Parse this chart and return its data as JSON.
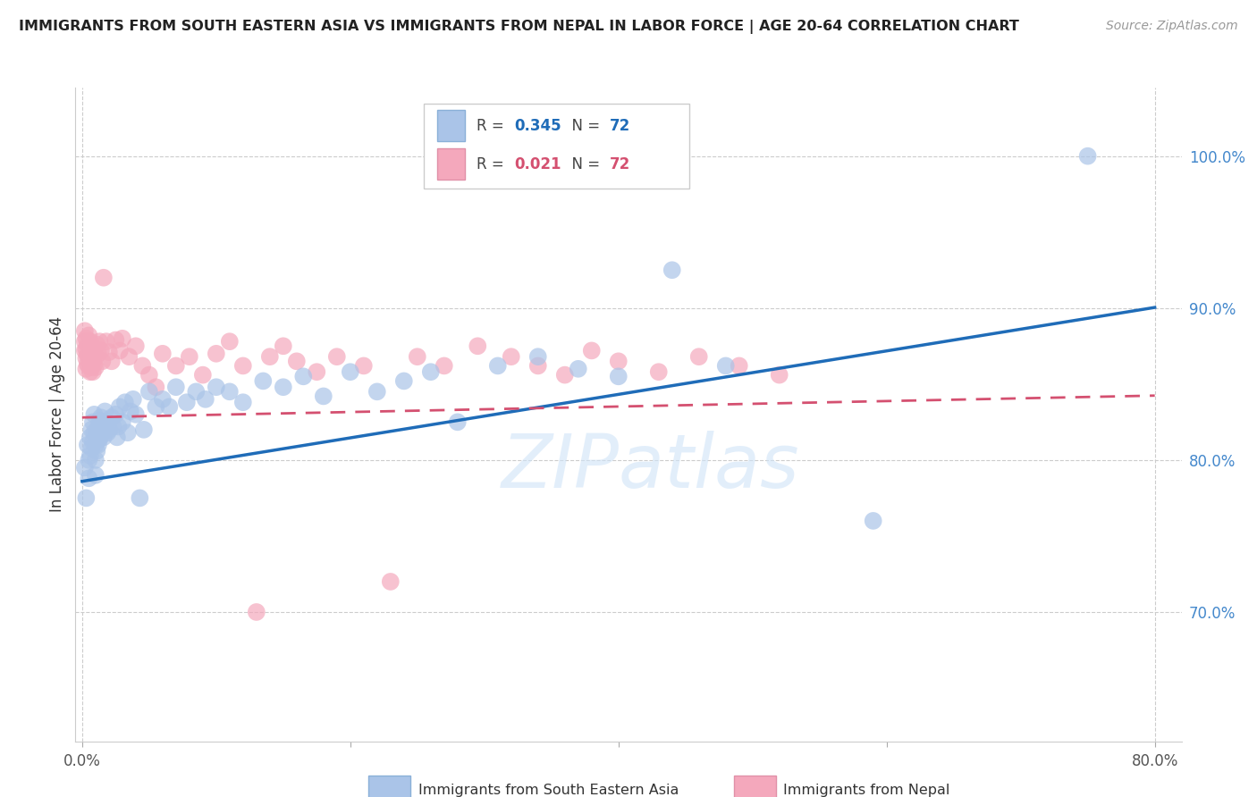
{
  "title": "IMMIGRANTS FROM SOUTH EASTERN ASIA VS IMMIGRANTS FROM NEPAL IN LABOR FORCE | AGE 20-64 CORRELATION CHART",
  "source": "Source: ZipAtlas.com",
  "ylabel": "In Labor Force | Age 20-64",
  "ytick_labels": [
    "70.0%",
    "80.0%",
    "90.0%",
    "100.0%"
  ],
  "ytick_values": [
    0.7,
    0.8,
    0.9,
    1.0
  ],
  "xlim": [
    -0.005,
    0.82
  ],
  "ylim": [
    0.615,
    1.045
  ],
  "xtick_positions": [
    0.0,
    0.2,
    0.4,
    0.6,
    0.8
  ],
  "xtick_label_left": "0.0%",
  "xtick_label_right": "80.0%",
  "R_blue": 0.345,
  "N_blue": 72,
  "R_pink": 0.021,
  "N_pink": 72,
  "blue_dot_color": "#aac4e8",
  "pink_dot_color": "#f4a8bc",
  "blue_line_color": "#1f6cb8",
  "pink_line_color": "#d45070",
  "watermark": "ZIPatlas",
  "blue_line_intercept": 0.786,
  "blue_line_slope": 0.143,
  "pink_line_intercept": 0.828,
  "pink_line_slope": 0.018,
  "blue_scatter_x": [
    0.002,
    0.003,
    0.004,
    0.005,
    0.005,
    0.006,
    0.006,
    0.007,
    0.007,
    0.008,
    0.008,
    0.009,
    0.009,
    0.01,
    0.01,
    0.01,
    0.011,
    0.011,
    0.012,
    0.012,
    0.013,
    0.013,
    0.014,
    0.014,
    0.015,
    0.016,
    0.017,
    0.018,
    0.019,
    0.02,
    0.022,
    0.023,
    0.025,
    0.026,
    0.027,
    0.028,
    0.03,
    0.032,
    0.034,
    0.036,
    0.038,
    0.04,
    0.043,
    0.046,
    0.05,
    0.055,
    0.06,
    0.065,
    0.07,
    0.078,
    0.085,
    0.092,
    0.1,
    0.11,
    0.12,
    0.135,
    0.15,
    0.165,
    0.18,
    0.2,
    0.22,
    0.24,
    0.26,
    0.28,
    0.31,
    0.34,
    0.37,
    0.4,
    0.44,
    0.48,
    0.59,
    0.75
  ],
  "blue_scatter_y": [
    0.795,
    0.775,
    0.81,
    0.8,
    0.788,
    0.815,
    0.803,
    0.82,
    0.808,
    0.825,
    0.812,
    0.83,
    0.818,
    0.81,
    0.8,
    0.79,
    0.818,
    0.806,
    0.822,
    0.81,
    0.826,
    0.814,
    0.828,
    0.816,
    0.821,
    0.815,
    0.832,
    0.825,
    0.818,
    0.82,
    0.828,
    0.822,
    0.83,
    0.815,
    0.822,
    0.835,
    0.825,
    0.838,
    0.818,
    0.832,
    0.84,
    0.83,
    0.775,
    0.82,
    0.845,
    0.835,
    0.84,
    0.835,
    0.848,
    0.838,
    0.845,
    0.84,
    0.848,
    0.845,
    0.838,
    0.852,
    0.848,
    0.855,
    0.842,
    0.858,
    0.845,
    0.852,
    0.858,
    0.825,
    0.862,
    0.868,
    0.86,
    0.855,
    0.925,
    0.862,
    0.76,
    1.0
  ],
  "pink_scatter_x": [
    0.002,
    0.002,
    0.002,
    0.003,
    0.003,
    0.003,
    0.003,
    0.004,
    0.004,
    0.004,
    0.005,
    0.005,
    0.005,
    0.005,
    0.006,
    0.006,
    0.006,
    0.006,
    0.007,
    0.007,
    0.007,
    0.008,
    0.008,
    0.008,
    0.009,
    0.009,
    0.01,
    0.01,
    0.011,
    0.012,
    0.013,
    0.014,
    0.015,
    0.016,
    0.018,
    0.02,
    0.022,
    0.025,
    0.028,
    0.03,
    0.035,
    0.04,
    0.045,
    0.05,
    0.055,
    0.06,
    0.07,
    0.08,
    0.09,
    0.1,
    0.11,
    0.12,
    0.13,
    0.14,
    0.15,
    0.16,
    0.175,
    0.19,
    0.21,
    0.23,
    0.25,
    0.27,
    0.295,
    0.32,
    0.34,
    0.36,
    0.38,
    0.4,
    0.43,
    0.46,
    0.49,
    0.52
  ],
  "pink_scatter_y": [
    0.885,
    0.878,
    0.872,
    0.88,
    0.873,
    0.867,
    0.86,
    0.876,
    0.869,
    0.863,
    0.882,
    0.875,
    0.868,
    0.862,
    0.878,
    0.872,
    0.865,
    0.858,
    0.875,
    0.868,
    0.861,
    0.872,
    0.865,
    0.858,
    0.87,
    0.863,
    0.868,
    0.861,
    0.876,
    0.87,
    0.878,
    0.872,
    0.865,
    0.92,
    0.878,
    0.871,
    0.865,
    0.879,
    0.872,
    0.88,
    0.868,
    0.875,
    0.862,
    0.856,
    0.848,
    0.87,
    0.862,
    0.868,
    0.856,
    0.87,
    0.878,
    0.862,
    0.7,
    0.868,
    0.875,
    0.865,
    0.858,
    0.868,
    0.862,
    0.72,
    0.868,
    0.862,
    0.875,
    0.868,
    0.862,
    0.856,
    0.872,
    0.865,
    0.858,
    0.868,
    0.862,
    0.856
  ]
}
